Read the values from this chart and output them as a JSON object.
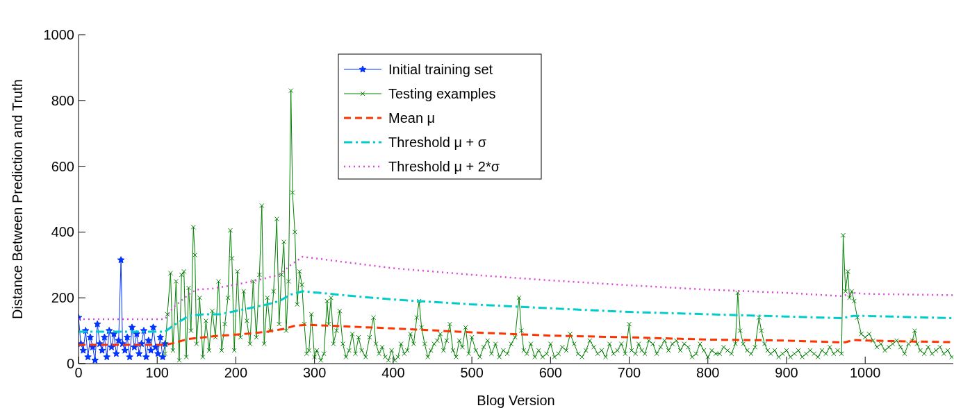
{
  "chart_data": {
    "type": "line",
    "xlabel": "Blog Version",
    "ylabel": "Distance Between Prediction and Truth",
    "xlim": [
      0,
      1112
    ],
    "ylim": [
      0,
      1000
    ],
    "xticks": [
      0,
      100,
      200,
      300,
      400,
      500,
      600,
      700,
      800,
      900,
      1000
    ],
    "yticks": [
      0,
      200,
      400,
      600,
      800,
      1000
    ],
    "legend": "top",
    "grid": false,
    "series": [
      {
        "name": "Initial training set",
        "color": "#0033ff",
        "marker": "star",
        "line_style": "solid",
        "x": [
          0,
          3,
          6,
          9,
          12,
          15,
          18,
          21,
          24,
          27,
          30,
          33,
          36,
          39,
          42,
          45,
          48,
          51,
          54,
          56,
          59,
          62,
          65,
          68,
          71,
          74,
          77,
          80,
          83,
          86,
          89,
          92,
          95,
          98,
          101,
          104,
          107,
          110
        ],
        "values": [
          140,
          60,
          40,
          100,
          20,
          80,
          50,
          10,
          120,
          60,
          40,
          80,
          20,
          100,
          50,
          90,
          30,
          70,
          315,
          60,
          40,
          80,
          20,
          110,
          50,
          90,
          30,
          60,
          100,
          20,
          70,
          40,
          110,
          50,
          30,
          80,
          20,
          60
        ]
      },
      {
        "name": "Testing examples",
        "color": "#008000",
        "marker": "cross",
        "line_style": "solid",
        "x": [
          110,
          113,
          117,
          120,
          124,
          128,
          131,
          134,
          137,
          140,
          143,
          146,
          148,
          150,
          154,
          158,
          162,
          166,
          170,
          174,
          178,
          182,
          186,
          190,
          193,
          195,
          198,
          202,
          206,
          210,
          214,
          218,
          222,
          226,
          230,
          233,
          236,
          240,
          244,
          248,
          252,
          255,
          258,
          261,
          264,
          267,
          270,
          272,
          275,
          278,
          281,
          284,
          287,
          290,
          293,
          296,
          300,
          303,
          308,
          312,
          316,
          318,
          321,
          324,
          328,
          332,
          336,
          340,
          344,
          348,
          352,
          356,
          360,
          365,
          370,
          375,
          378,
          382,
          386,
          390,
          394,
          398,
          402,
          406,
          410,
          414,
          418,
          422,
          426,
          430,
          433,
          436,
          440,
          444,
          448,
          452,
          456,
          460,
          464,
          468,
          472,
          476,
          480,
          484,
          488,
          492,
          496,
          500,
          505,
          510,
          515,
          520,
          525,
          530,
          535,
          540,
          545,
          550,
          555,
          560,
          563,
          566,
          570,
          575,
          580,
          585,
          590,
          595,
          600,
          605,
          610,
          615,
          620,
          625,
          630,
          635,
          640,
          645,
          650,
          655,
          660,
          665,
          670,
          675,
          680,
          685,
          690,
          695,
          700,
          703,
          708,
          712,
          716,
          720,
          725,
          730,
          735,
          740,
          745,
          750,
          755,
          760,
          765,
          770,
          775,
          780,
          785,
          790,
          795,
          800,
          805,
          810,
          815,
          820,
          825,
          830,
          835,
          838,
          841,
          845,
          850,
          855,
          860,
          865,
          868,
          872,
          876,
          880,
          885,
          890,
          895,
          900,
          905,
          910,
          915,
          920,
          925,
          930,
          935,
          940,
          945,
          950,
          955,
          960,
          965,
          970,
          972,
          975,
          978,
          980,
          983,
          986,
          990,
          995,
          1000,
          1005,
          1010,
          1015,
          1020,
          1025,
          1030,
          1035,
          1040,
          1045,
          1050,
          1055,
          1060,
          1063,
          1066,
          1070,
          1075,
          1080,
          1085,
          1090,
          1095,
          1100,
          1105,
          1110
        ],
        "values": [
          30,
          150,
          275,
          40,
          250,
          10,
          270,
          280,
          20,
          230,
          100,
          415,
          330,
          60,
          200,
          20,
          130,
          40,
          160,
          80,
          250,
          40,
          120,
          200,
          405,
          320,
          40,
          280,
          80,
          220,
          130,
          60,
          250,
          80,
          270,
          480,
          60,
          200,
          100,
          220,
          440,
          120,
          270,
          370,
          100,
          250,
          830,
          520,
          400,
          180,
          280,
          240,
          120,
          30,
          40,
          150,
          20,
          40,
          10,
          30,
          190,
          120,
          200,
          60,
          100,
          160,
          60,
          20,
          40,
          90,
          30,
          80,
          40,
          20,
          80,
          140,
          60,
          30,
          50,
          20,
          10,
          40,
          10,
          20,
          60,
          30,
          40,
          90,
          60,
          140,
          190,
          110,
          60,
          20,
          40,
          60,
          70,
          90,
          40,
          70,
          120,
          40,
          20,
          70,
          50,
          110,
          30,
          80,
          40,
          20,
          50,
          70,
          30,
          60,
          20,
          40,
          30,
          60,
          80,
          200,
          100,
          40,
          30,
          60,
          20,
          40,
          20,
          30,
          60,
          20,
          30,
          50,
          40,
          90,
          60,
          30,
          20,
          40,
          70,
          50,
          30,
          40,
          20,
          60,
          30,
          40,
          60,
          30,
          120,
          40,
          30,
          60,
          40,
          30,
          70,
          60,
          30,
          50,
          70,
          40,
          60,
          70,
          40,
          60,
          50,
          20,
          30,
          60,
          40,
          20,
          40,
          30,
          30,
          50,
          40,
          30,
          60,
          215,
          100,
          60,
          40,
          30,
          50,
          140,
          100,
          60,
          40,
          30,
          40,
          20,
          30,
          40,
          20,
          30,
          40,
          20,
          30,
          40,
          30,
          20,
          40,
          30,
          50,
          30,
          40,
          30,
          390,
          220,
          280,
          200,
          220,
          190,
          140,
          90,
          80,
          90,
          70,
          50,
          60,
          40,
          50,
          60,
          70,
          50,
          30,
          60,
          70,
          100,
          60,
          40,
          30,
          50,
          30,
          40,
          50,
          30,
          40,
          20
        ]
      },
      {
        "name": "Mean μ",
        "color": "#ff3300",
        "marker": "none",
        "line_style": "dashed",
        "x": [
          0,
          110,
          120,
          140,
          160,
          180,
          200,
          220,
          240,
          260,
          275,
          290,
          350,
          400,
          500,
          600,
          700,
          800,
          900,
          965,
          975,
          985,
          1000,
          1112
        ],
        "values": [
          57,
          57,
          62,
          75,
          80,
          85,
          88,
          92,
          97,
          105,
          115,
          118,
          112,
          107,
          95,
          85,
          80,
          73,
          70,
          65,
          65,
          72,
          70,
          65
        ]
      },
      {
        "name": "Threshold μ + σ",
        "color": "#00cccc",
        "marker": "none",
        "line_style": "dashdot",
        "x": [
          0,
          110,
          120,
          140,
          160,
          180,
          200,
          220,
          240,
          255,
          270,
          285,
          350,
          400,
          500,
          600,
          700,
          800,
          900,
          970,
          985,
          1000,
          1112
        ],
        "values": [
          97,
          97,
          115,
          145,
          150,
          150,
          160,
          170,
          180,
          190,
          210,
          220,
          205,
          195,
          180,
          168,
          157,
          150,
          143,
          138,
          145,
          145,
          138
        ]
      },
      {
        "name": "Threshold μ + 2*σ",
        "color": "#dd44dd",
        "marker": "none",
        "line_style": "dotted",
        "x": [
          0,
          110,
          120,
          140,
          150,
          170,
          200,
          230,
          255,
          270,
          285,
          350,
          400,
          500,
          600,
          700,
          800,
          900,
          970,
          985,
          1000,
          1112
        ],
        "values": [
          135,
          135,
          170,
          210,
          225,
          228,
          240,
          255,
          270,
          300,
          325,
          305,
          290,
          270,
          253,
          238,
          225,
          215,
          205,
          215,
          212,
          208
        ]
      }
    ]
  }
}
